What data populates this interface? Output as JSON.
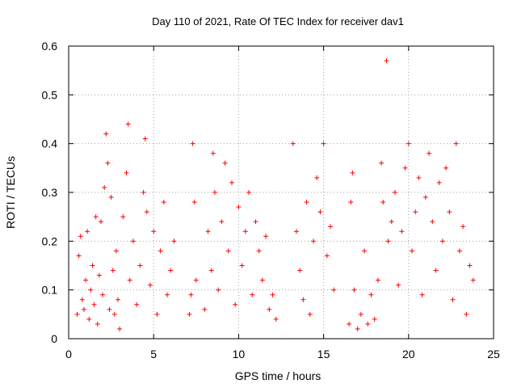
{
  "chart_data": {
    "type": "scatter",
    "title": "Day 110 of 2021, Rate Of TEC Index for receiver dav1",
    "xlabel": "GPS time / hours",
    "ylabel": "ROTI / TECUs",
    "xlim": [
      0,
      25
    ],
    "ylim": [
      0,
      0.6
    ],
    "xticks": [
      0,
      5,
      10,
      15,
      20,
      25
    ],
    "yticks": [
      0,
      0.1,
      0.2,
      0.3,
      0.4,
      0.5,
      0.6
    ],
    "xtick_labels": [
      "0",
      "5",
      "10",
      "15",
      "20",
      "25"
    ],
    "ytick_labels": [
      "0",
      "0.1",
      "0.2",
      "0.3",
      "0.4",
      "0.5",
      "0.6"
    ],
    "grid": true,
    "marker": "+",
    "marker_color": "#ff0000",
    "series": [
      {
        "x": [
          0.5,
          0.6,
          0.7,
          0.8,
          0.9,
          1.0,
          1.1,
          1.2,
          1.3,
          1.4,
          1.5,
          1.6,
          1.7,
          1.8,
          1.9,
          2.0,
          2.1,
          2.2,
          2.3,
          2.4,
          2.5,
          2.6,
          2.7,
          2.8,
          2.9,
          3.0,
          3.2,
          3.4,
          3.5,
          3.6,
          3.8,
          4.0,
          4.2,
          4.4,
          4.5,
          4.6,
          4.8,
          5.0,
          5.2,
          5.4,
          5.6,
          5.8,
          6.0,
          6.2,
          7.1,
          7.2,
          7.3,
          7.4,
          7.5,
          8.0,
          8.2,
          8.4,
          8.5,
          8.6,
          8.8,
          9.0,
          9.2,
          9.4,
          9.6,
          9.8,
          10.0,
          10.2,
          10.4,
          10.6,
          10.8,
          11.0,
          11.2,
          11.4,
          11.6,
          11.8,
          12.0,
          12.2,
          13.2,
          13.4,
          13.6,
          13.8,
          14.0,
          14.2,
          14.4,
          14.6,
          14.8,
          15.0,
          15.2,
          15.4,
          15.6,
          16.5,
          16.6,
          16.7,
          16.8,
          17.0,
          17.2,
          17.4,
          17.6,
          17.8,
          18.0,
          18.2,
          18.4,
          18.5,
          18.7,
          18.8,
          19.0,
          19.2,
          19.4,
          19.6,
          19.8,
          20.0,
          20.2,
          20.4,
          20.6,
          20.8,
          21.0,
          21.2,
          21.4,
          21.6,
          21.8,
          22.0,
          22.2,
          22.4,
          22.6,
          22.8,
          23.0,
          23.2,
          23.4,
          23.6,
          23.8
        ],
        "y": [
          0.05,
          0.17,
          0.21,
          0.08,
          0.06,
          0.12,
          0.22,
          0.04,
          0.1,
          0.15,
          0.07,
          0.25,
          0.03,
          0.13,
          0.24,
          0.09,
          0.31,
          0.42,
          0.36,
          0.06,
          0.29,
          0.14,
          0.05,
          0.18,
          0.08,
          0.02,
          0.25,
          0.34,
          0.44,
          0.12,
          0.2,
          0.07,
          0.15,
          0.3,
          0.41,
          0.26,
          0.11,
          0.22,
          0.05,
          0.18,
          0.28,
          0.09,
          0.14,
          0.2,
          0.05,
          0.09,
          0.4,
          0.28,
          0.12,
          0.06,
          0.22,
          0.14,
          0.38,
          0.3,
          0.1,
          0.24,
          0.36,
          0.18,
          0.32,
          0.07,
          0.27,
          0.15,
          0.22,
          0.3,
          0.09,
          0.24,
          0.18,
          0.12,
          0.21,
          0.06,
          0.09,
          0.04,
          0.4,
          0.22,
          0.14,
          0.08,
          0.28,
          0.05,
          0.2,
          0.33,
          0.26,
          0.4,
          0.17,
          0.23,
          0.1,
          0.03,
          0.28,
          0.34,
          0.1,
          0.02,
          0.05,
          0.18,
          0.03,
          0.09,
          0.04,
          0.12,
          0.36,
          0.28,
          0.57,
          0.2,
          0.24,
          0.3,
          0.11,
          0.22,
          0.35,
          0.4,
          0.18,
          0.26,
          0.33,
          0.09,
          0.29,
          0.38,
          0.24,
          0.14,
          0.32,
          0.2,
          0.35,
          0.26,
          0.08,
          0.4,
          0.18,
          0.23,
          0.05,
          0.15,
          0.12
        ]
      }
    ]
  }
}
